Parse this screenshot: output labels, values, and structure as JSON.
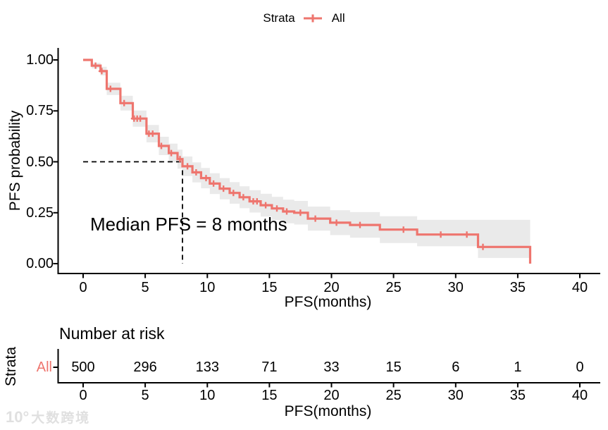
{
  "legend": {
    "title": "Strata",
    "items": [
      {
        "label": "All",
        "color": "#EE756E"
      }
    ]
  },
  "main_plot": {
    "ylabel": "PFS probability",
    "xlabel": "PFS(months)",
    "annotation": "Median PFS = 8 months"
  },
  "risk_table": {
    "title": "Number at risk",
    "strata_axis_label": "Strata",
    "row_label": "All",
    "xlabel": "PFS(months)"
  },
  "watermark": {
    "logo": "10°",
    "text": "大数跨境"
  },
  "colors": {
    "curve": "#EE756E",
    "ci_band": "#EAEAEA",
    "axis": "#000000",
    "dashed_line": "#000000"
  },
  "chart_data": {
    "type": "line",
    "subtype": "kaplan-meier-survival-step-curve",
    "xlabel": "PFS(months)",
    "ylabel": "PFS probability",
    "xlim": [
      0,
      40
    ],
    "ylim": [
      0,
      1
    ],
    "xticks": [
      0,
      5,
      10,
      15,
      20,
      25,
      30,
      35,
      40
    ],
    "ytick_values": [
      0,
      0.25,
      0.5,
      0.75,
      1
    ],
    "ytick_labels": [
      "0.00",
      "0.25",
      "0.50",
      "0.75",
      "1.00"
    ],
    "grid": false,
    "legend_position": "top",
    "annotation": "Median PFS = 8 months",
    "median": {
      "time_months": 8,
      "survival_probability": 0.5
    },
    "series": [
      {
        "name": "All",
        "color": "#EE756E",
        "ci_color": "#EAEAEA",
        "steps_t_p_upper_lower": [
          [
            0.0,
            1.0,
            1.0,
            1.0
          ],
          [
            0.7,
            0.972,
            0.986,
            0.958
          ],
          [
            1.4,
            0.945,
            0.966,
            0.924
          ],
          [
            1.9,
            0.858,
            0.888,
            0.828
          ],
          [
            3.0,
            0.788,
            0.824,
            0.752
          ],
          [
            4.0,
            0.712,
            0.752,
            0.672
          ],
          [
            5.1,
            0.638,
            0.681,
            0.595
          ],
          [
            6.1,
            0.578,
            0.623,
            0.533
          ],
          [
            6.9,
            0.543,
            0.589,
            0.497
          ],
          [
            7.6,
            0.513,
            0.56,
            0.466
          ],
          [
            8.0,
            0.478,
            0.526,
            0.43
          ],
          [
            8.8,
            0.448,
            0.497,
            0.399
          ],
          [
            9.5,
            0.42,
            0.47,
            0.37
          ],
          [
            10.2,
            0.393,
            0.444,
            0.342
          ],
          [
            11.0,
            0.368,
            0.42,
            0.316
          ],
          [
            11.8,
            0.347,
            0.4,
            0.294
          ],
          [
            12.6,
            0.326,
            0.38,
            0.272
          ],
          [
            13.4,
            0.306,
            0.361,
            0.251
          ],
          [
            14.3,
            0.287,
            0.343,
            0.231
          ],
          [
            15.2,
            0.271,
            0.328,
            0.214
          ],
          [
            16.1,
            0.256,
            0.314,
            0.198
          ],
          [
            17.0,
            0.25,
            0.308,
            0.192
          ],
          [
            18.1,
            0.221,
            0.28,
            0.162
          ],
          [
            19.9,
            0.201,
            0.262,
            0.14
          ],
          [
            21.5,
            0.19,
            0.253,
            0.127
          ],
          [
            23.9,
            0.167,
            0.233,
            0.101
          ],
          [
            26.9,
            0.143,
            0.215,
            0.085
          ],
          [
            31.8,
            0.082,
            0.215,
            0.028
          ],
          [
            36.0,
            0.0,
            0.0,
            0.0
          ]
        ],
        "censor_marks_t_p": [
          [
            1.0,
            0.972
          ],
          [
            1.5,
            0.945
          ],
          [
            2.2,
            0.858
          ],
          [
            3.3,
            0.788
          ],
          [
            4.1,
            0.712
          ],
          [
            4.35,
            0.712
          ],
          [
            4.6,
            0.712
          ],
          [
            5.3,
            0.638
          ],
          [
            5.6,
            0.638
          ],
          [
            6.3,
            0.578
          ],
          [
            7.1,
            0.543
          ],
          [
            7.8,
            0.513
          ],
          [
            8.4,
            0.478
          ],
          [
            9.1,
            0.448
          ],
          [
            9.9,
            0.42
          ],
          [
            10.5,
            0.393
          ],
          [
            11.3,
            0.368
          ],
          [
            12.1,
            0.347
          ],
          [
            12.9,
            0.326
          ],
          [
            13.7,
            0.306
          ],
          [
            14.0,
            0.306
          ],
          [
            14.7,
            0.287
          ],
          [
            15.6,
            0.271
          ],
          [
            16.4,
            0.256
          ],
          [
            17.5,
            0.25
          ],
          [
            18.7,
            0.221
          ],
          [
            20.4,
            0.201
          ],
          [
            22.3,
            0.19
          ],
          [
            25.8,
            0.167
          ],
          [
            28.8,
            0.143
          ],
          [
            30.9,
            0.143
          ],
          [
            32.2,
            0.082
          ]
        ]
      }
    ],
    "number_at_risk": {
      "strata": "All",
      "times": [
        0,
        5,
        10,
        15,
        20,
        25,
        30,
        35,
        40
      ],
      "counts": [
        500,
        296,
        133,
        71,
        33,
        15,
        6,
        1,
        0
      ]
    }
  }
}
